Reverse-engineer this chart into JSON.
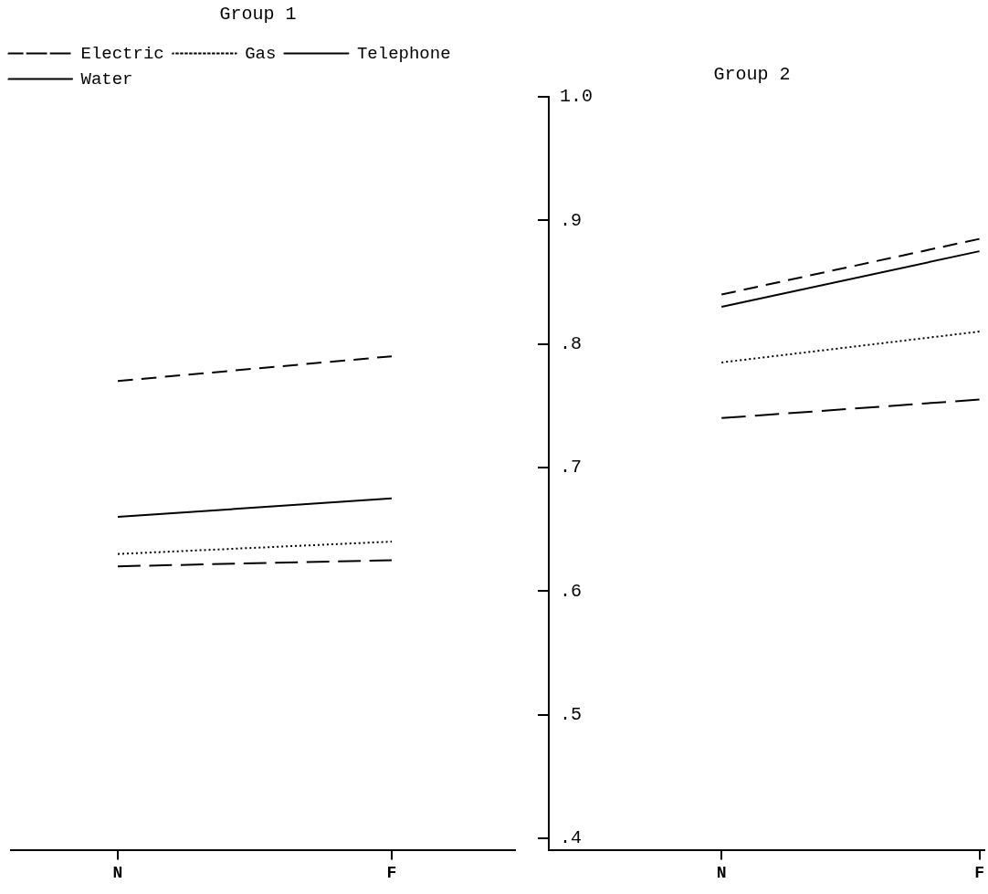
{
  "chart_data": [
    {
      "type": "line",
      "title": "Group 1",
      "categories": [
        "N",
        "F"
      ],
      "ylim": [
        0.39,
        1.0
      ],
      "tick_labels": "x",
      "legend": "top left",
      "marker": "none",
      "series": [
        {
          "name": "Electric",
          "color": "#000000",
          "line_style": "dashed",
          "values": [
            0.77,
            0.79
          ]
        },
        {
          "name": "Gas",
          "color": "#000000",
          "line_style": "dotted",
          "values": [
            0.63,
            0.64
          ]
        },
        {
          "name": "Telephone",
          "color": "#000000",
          "line_style": "solid",
          "values": [
            0.66,
            0.675
          ]
        },
        {
          "name": "Water",
          "color": "#000000",
          "line_style": "dashed",
          "values": [
            0.62,
            0.625
          ]
        }
      ]
    },
    {
      "type": "line",
      "title": "Group 2",
      "categories": [
        "N",
        "F"
      ],
      "ylim": [
        0.39,
        1.0
      ],
      "yticks": [
        {
          "value": 1.0,
          "label": "1.0"
        },
        {
          "value": 0.9,
          "label": ".9"
        },
        {
          "value": 0.8,
          "label": ".8"
        },
        {
          "value": 0.7,
          "label": ".7"
        },
        {
          "value": 0.6,
          "label": ".6"
        },
        {
          "value": 0.5,
          "label": ".5"
        },
        {
          "value": 0.4,
          "label": ".4"
        }
      ],
      "marker": "none",
      "series": [
        {
          "color": "#000000",
          "line_style": "dashed",
          "values": [
            0.84,
            0.885
          ]
        },
        {
          "color": "#000000",
          "line_style": "dotted",
          "values": [
            0.785,
            0.81
          ]
        },
        {
          "color": "#000000",
          "line_style": "solid",
          "values": [
            0.83,
            0.875
          ]
        },
        {
          "color": "#000000",
          "line_style": "dashed",
          "values": [
            0.74,
            0.755
          ]
        }
      ]
    }
  ]
}
